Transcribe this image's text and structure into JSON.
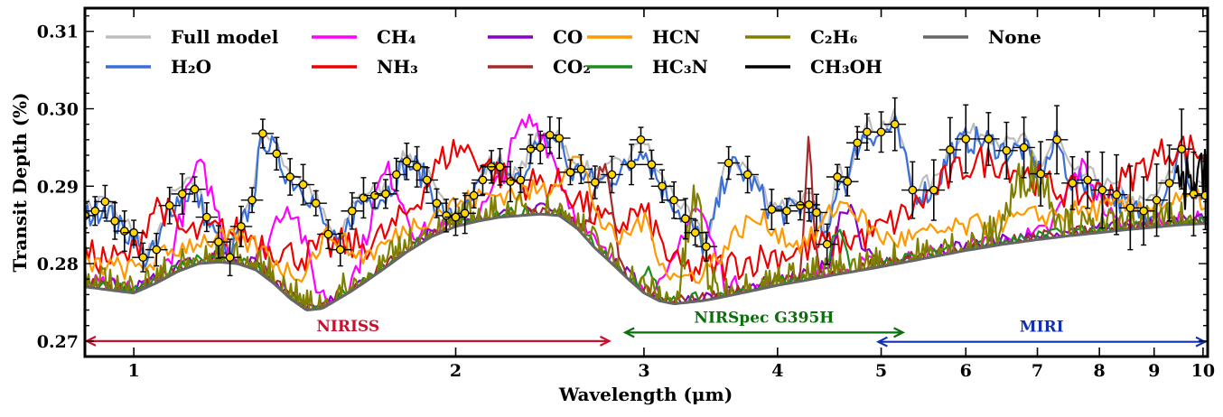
{
  "chart_data": {
    "type": "line",
    "title": "",
    "xlabel": "Wavelength (μm)",
    "ylabel": "Transit Depth (%)",
    "xscale": "log",
    "xlim": [
      0.9,
      10.1
    ],
    "ylim": [
      0.268,
      0.313
    ],
    "xticks": [
      {
        "value": 1,
        "label": "1"
      },
      {
        "value": 2,
        "label": "2"
      },
      {
        "value": 3,
        "label": "3"
      },
      {
        "value": 4,
        "label": "4"
      },
      {
        "value": 5,
        "label": "5"
      },
      {
        "value": 6,
        "label": "6"
      },
      {
        "value": 7,
        "label": "7"
      },
      {
        "value": 8,
        "label": "8"
      },
      {
        "value": 9,
        "label": "9"
      },
      {
        "value": 10,
        "label": "10"
      }
    ],
    "yticks": [
      {
        "value": 0.27,
        "label": "0.27"
      },
      {
        "value": 0.28,
        "label": "0.28"
      },
      {
        "value": 0.29,
        "label": "0.29"
      },
      {
        "value": 0.3,
        "label": "0.30"
      },
      {
        "value": 0.31,
        "label": "0.31"
      }
    ],
    "legend": [
      {
        "name": "Full model",
        "color": "#bdbdbd"
      },
      {
        "name": "H₂O",
        "color": "#3b6fd8"
      },
      {
        "name": "CH₄",
        "color": "#ff00ff"
      },
      {
        "name": "NH₃",
        "color": "#ee0000"
      },
      {
        "name": "CO",
        "color": "#8a00c8"
      },
      {
        "name": "CO₂",
        "color": "#a52a2a"
      },
      {
        "name": "HCN",
        "color": "#ff9900"
      },
      {
        "name": "HC₃N",
        "color": "#1e8c1e"
      },
      {
        "name": "C₂H₆",
        "color": "#808000"
      },
      {
        "name": "CH₃OH",
        "color": "#000000"
      },
      {
        "name": "None",
        "color": "#666666"
      }
    ],
    "baseline": {
      "name": "None",
      "x": [
        0.9,
        0.96,
        1.0,
        1.05,
        1.1,
        1.15,
        1.2,
        1.25,
        1.3,
        1.35,
        1.4,
        1.45,
        1.5,
        1.6,
        1.7,
        1.8,
        1.9,
        2.0,
        2.1,
        2.2,
        2.3,
        2.4,
        2.5,
        2.6,
        2.7,
        2.8,
        2.9,
        3.0,
        3.1,
        3.2,
        3.3,
        3.4,
        3.5,
        3.7,
        4.0,
        4.5,
        5.0,
        5.5,
        6.0,
        6.5,
        7.0,
        7.5,
        8.0,
        8.5,
        9.0,
        9.5,
        10.1
      ],
      "y": [
        0.277,
        0.2765,
        0.2762,
        0.2775,
        0.279,
        0.28,
        0.2802,
        0.28,
        0.2792,
        0.2775,
        0.2755,
        0.274,
        0.2742,
        0.2765,
        0.279,
        0.2815,
        0.2835,
        0.2848,
        0.2855,
        0.286,
        0.2862,
        0.2864,
        0.2862,
        0.2845,
        0.282,
        0.28,
        0.278,
        0.2762,
        0.2752,
        0.2748,
        0.275,
        0.2752,
        0.2755,
        0.2762,
        0.2772,
        0.2785,
        0.2796,
        0.2807,
        0.2817,
        0.2825,
        0.2831,
        0.2836,
        0.284,
        0.2844,
        0.2847,
        0.285,
        0.2852
      ]
    },
    "observations": {
      "name": "Data",
      "color": "#ffd700",
      "x": [
        0.9,
        0.92,
        0.94,
        0.96,
        0.98,
        1.0,
        1.02,
        1.05,
        1.08,
        1.11,
        1.14,
        1.17,
        1.2,
        1.23,
        1.26,
        1.29,
        1.32,
        1.36,
        1.4,
        1.44,
        1.48,
        1.52,
        1.56,
        1.6,
        1.64,
        1.68,
        1.72,
        1.76,
        1.8,
        1.84,
        1.88,
        1.92,
        1.96,
        2.0,
        2.04,
        2.08,
        2.12,
        2.16,
        2.2,
        2.25,
        2.3,
        2.35,
        2.4,
        2.45,
        2.5,
        2.56,
        2.62,
        2.7,
        2.8,
        2.92,
        2.98,
        3.05,
        3.12,
        3.2,
        3.28,
        3.35,
        3.43,
        3.6,
        3.75,
        3.95,
        4.08,
        4.2,
        4.28,
        4.35,
        4.45,
        4.55,
        4.65,
        4.75,
        4.85,
        5.0,
        5.15,
        5.35,
        5.6,
        5.8,
        6.0,
        6.3,
        6.55,
        6.8,
        7.05,
        7.3,
        7.55,
        7.8,
        8.05,
        8.3,
        8.55,
        8.8,
        9.05,
        9.3,
        9.55,
        9.8,
        10.05
      ],
      "y": [
        0.2862,
        0.2868,
        0.288,
        0.2855,
        0.2842,
        0.284,
        0.2808,
        0.2818,
        0.2875,
        0.289,
        0.2896,
        0.286,
        0.2828,
        0.2808,
        0.2848,
        0.2882,
        0.2968,
        0.2942,
        0.2912,
        0.2902,
        0.2878,
        0.2838,
        0.2818,
        0.2868,
        0.2885,
        0.2888,
        0.289,
        0.2915,
        0.2932,
        0.2925,
        0.2908,
        0.2878,
        0.2862,
        0.286,
        0.2865,
        0.2888,
        0.2908,
        0.2925,
        0.2925,
        0.2906,
        0.2908,
        0.2948,
        0.295,
        0.2966,
        0.2962,
        0.2918,
        0.2922,
        0.2905,
        0.2915,
        0.2928,
        0.296,
        0.2928,
        0.29,
        0.2882,
        0.2858,
        0.284,
        0.2822,
        0.293,
        0.2915,
        0.287,
        0.2868,
        0.2875,
        0.2876,
        0.2866,
        0.2825,
        0.2912,
        0.2906,
        0.2956,
        0.297,
        0.297,
        0.298,
        0.2895,
        0.2895,
        0.2947,
        0.2961,
        0.2961,
        0.2946,
        0.295,
        0.2916,
        0.296,
        0.2904,
        0.2908,
        0.2895,
        0.2889,
        0.2872,
        0.2868,
        0.2882,
        0.2904,
        0.2948,
        0.289,
        0.2888
      ]
    },
    "annotations": [
      {
        "label": "NIRISS",
        "x_start": 0.9,
        "x_end": 2.8,
        "y": 0.27,
        "color": "#c8102e"
      },
      {
        "label": "NIRSpec G395H",
        "x_start": 2.87,
        "x_end": 5.27,
        "y": 0.2711,
        "color": "#0a6e0a"
      },
      {
        "label": "MIRI",
        "x_start": 4.95,
        "x_end": 10.1,
        "y": 0.2699,
        "color": "#1030b0"
      }
    ]
  }
}
